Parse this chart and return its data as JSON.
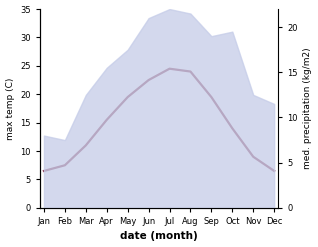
{
  "months": [
    "Jan",
    "Feb",
    "Mar",
    "Apr",
    "May",
    "Jun",
    "Jul",
    "Aug",
    "Sep",
    "Oct",
    "Nov",
    "Dec"
  ],
  "month_positions": [
    0,
    1,
    2,
    3,
    4,
    5,
    6,
    7,
    8,
    9,
    10,
    11
  ],
  "max_temp": [
    6.5,
    7.5,
    11.0,
    15.5,
    19.5,
    22.5,
    24.5,
    24.0,
    19.5,
    14.0,
    9.0,
    6.5
  ],
  "precipitation": [
    8.0,
    7.5,
    12.5,
    15.5,
    17.5,
    21.0,
    22.0,
    21.5,
    19.0,
    19.5,
    12.5,
    11.5
  ],
  "temp_fill_color": "#c5cce8",
  "precip_color": "#8b3a52",
  "temp_ylim": [
    0,
    35
  ],
  "precip_ylim": [
    0,
    22
  ],
  "temp_yticks": [
    0,
    5,
    10,
    15,
    20,
    25,
    30,
    35
  ],
  "precip_yticks": [
    0,
    5,
    10,
    15,
    20
  ],
  "ylabel_left": "max temp (C)",
  "ylabel_right": "med. precipitation (kg/m2)",
  "xlabel": "date (month)",
  "background_color": "#ffffff"
}
